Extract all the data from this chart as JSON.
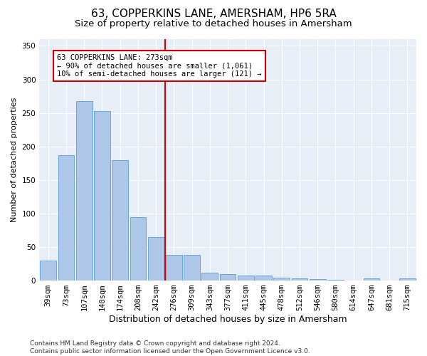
{
  "title1": "63, COPPERKINS LANE, AMERSHAM, HP6 5RA",
  "title2": "Size of property relative to detached houses in Amersham",
  "xlabel": "Distribution of detached houses by size in Amersham",
  "ylabel": "Number of detached properties",
  "categories": [
    "39sqm",
    "73sqm",
    "107sqm",
    "140sqm",
    "174sqm",
    "208sqm",
    "242sqm",
    "276sqm",
    "309sqm",
    "343sqm",
    "377sqm",
    "411sqm",
    "445sqm",
    "478sqm",
    "512sqm",
    "546sqm",
    "580sqm",
    "614sqm",
    "647sqm",
    "681sqm",
    "715sqm"
  ],
  "values": [
    30,
    187,
    268,
    253,
    180,
    95,
    65,
    38,
    38,
    12,
    10,
    8,
    8,
    4,
    3,
    2,
    1,
    0,
    3,
    0,
    3
  ],
  "bar_color": "#aec6e8",
  "bar_edge_color": "#5a9fd4",
  "vline_color": "#cc0000",
  "annotation_text": "63 COPPERKINS LANE: 273sqm\n← 90% of detached houses are smaller (1,061)\n10% of semi-detached houses are larger (121) →",
  "annotation_box_color": "#ffffff",
  "annotation_box_edge_color": "#cc0000",
  "ylim": [
    0,
    360
  ],
  "yticks": [
    0,
    50,
    100,
    150,
    200,
    250,
    300,
    350
  ],
  "bg_color": "#e8eef8",
  "footnote": "Contains HM Land Registry data © Crown copyright and database right 2024.\nContains public sector information licensed under the Open Government Licence v3.0.",
  "title1_fontsize": 11,
  "title2_fontsize": 9.5,
  "xlabel_fontsize": 9,
  "ylabel_fontsize": 8,
  "tick_fontsize": 7.5,
  "annotation_fontsize": 7.5,
  "footnote_fontsize": 6.5
}
